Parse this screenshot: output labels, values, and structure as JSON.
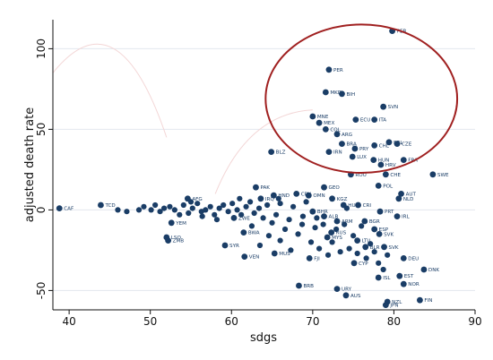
{
  "chart_data": {
    "type": "scatter",
    "title": "",
    "xlabel": "sdgs",
    "ylabel": "adjusted death rate",
    "xlim": [
      38,
      90
    ],
    "ylim": [
      -62,
      118
    ],
    "xticks": [
      40,
      50,
      60,
      70,
      80,
      90
    ],
    "yticks": [
      -50,
      0,
      50,
      100
    ],
    "grid": "horizontal",
    "marker_color": "#1a3d66",
    "grid_color": "#e3e7ee",
    "annotation": {
      "shape": "ellipse",
      "color": "#a02020",
      "center": [
        76,
        69
      ],
      "radii": [
        11.8,
        46
      ],
      "description": "outlier region"
    },
    "labeled_points": [
      {
        "label": "CAF",
        "x": 38.8,
        "y": 1
      },
      {
        "label": "TCD",
        "x": 43.9,
        "y": 3
      },
      {
        "label": "LSO",
        "x": 52.0,
        "y": -17
      },
      {
        "label": "ZMB",
        "x": 52.2,
        "y": -19
      },
      {
        "label": "YEM",
        "x": 52.6,
        "y": -8
      },
      {
        "label": "AFG",
        "x": 54.6,
        "y": 7
      },
      {
        "label": "SYR",
        "x": 59.2,
        "y": -22
      },
      {
        "label": "BWA",
        "x": 61.5,
        "y": -14
      },
      {
        "label": "VEN",
        "x": 61.6,
        "y": -29
      },
      {
        "label": "ZWE",
        "x": 60.3,
        "y": -5
      },
      {
        "label": "IRQ",
        "x": 63.6,
        "y": 7
      },
      {
        "label": "BLZ",
        "x": 64.9,
        "y": 36
      },
      {
        "label": "PAK",
        "x": 63.0,
        "y": 14
      },
      {
        "label": "HND",
        "x": 65.2,
        "y": 9
      },
      {
        "label": "CPV",
        "x": 68.0,
        "y": 10
      },
      {
        "label": "MUS",
        "x": 65.3,
        "y": -27
      },
      {
        "label": "BRB",
        "x": 68.3,
        "y": -47
      },
      {
        "label": "FJI",
        "x": 69.6,
        "y": -30
      },
      {
        "label": "GEO",
        "x": 71.4,
        "y": 14
      },
      {
        "label": "MNE",
        "x": 70.0,
        "y": 58
      },
      {
        "label": "MEX",
        "x": 70.8,
        "y": 54
      },
      {
        "label": "COL",
        "x": 71.6,
        "y": 50
      },
      {
        "label": "ARG",
        "x": 73.0,
        "y": 47
      },
      {
        "label": "BRA",
        "x": 73.6,
        "y": 41
      },
      {
        "label": "IRN",
        "x": 72.0,
        "y": 36
      },
      {
        "label": "PER",
        "x": 72.0,
        "y": 87
      },
      {
        "label": "MKD",
        "x": 71.6,
        "y": 73
      },
      {
        "label": "BIH",
        "x": 73.6,
        "y": 72
      },
      {
        "label": "ECU",
        "x": 75.3,
        "y": 56
      },
      {
        "label": "ITA",
        "x": 77.6,
        "y": 56
      },
      {
        "label": "SVN",
        "x": 78.7,
        "y": 64
      },
      {
        "label": "PRY",
        "x": 75.2,
        "y": 38
      },
      {
        "label": "LUX",
        "x": 74.9,
        "y": 33
      },
      {
        "label": "ROU",
        "x": 74.7,
        "y": 22
      },
      {
        "label": "CHL",
        "x": 77.6,
        "y": 40
      },
      {
        "label": "BEL",
        "x": 79.4,
        "y": 42
      },
      {
        "label": "CZE",
        "x": 80.4,
        "y": 41
      },
      {
        "label": "HUN",
        "x": 77.5,
        "y": 31
      },
      {
        "label": "HRV",
        "x": 78.4,
        "y": 28
      },
      {
        "label": "CHE",
        "x": 79.0,
        "y": 22
      },
      {
        "label": "FRA",
        "x": 81.2,
        "y": 31
      },
      {
        "label": "POL",
        "x": 78.1,
        "y": 15
      },
      {
        "label": "SWE",
        "x": 84.8,
        "y": 22
      },
      {
        "label": "AUT",
        "x": 80.9,
        "y": 10
      },
      {
        "label": "NLD",
        "x": 80.6,
        "y": 7
      },
      {
        "label": "CRI",
        "x": 75.6,
        "y": 3
      },
      {
        "label": "PRT",
        "x": 78.3,
        "y": -1
      },
      {
        "label": "IRL",
        "x": 80.4,
        "y": -4
      },
      {
        "label": "SVK",
        "x": 78.2,
        "y": -15
      },
      {
        "label": "BLR",
        "x": 76.5,
        "y": -23
      },
      {
        "label": "LTU",
        "x": 75.5,
        "y": -19
      },
      {
        "label": "CYP",
        "x": 75.1,
        "y": -33
      },
      {
        "label": "DEU",
        "x": 81.2,
        "y": -30
      },
      {
        "label": "EST",
        "x": 80.7,
        "y": -41
      },
      {
        "label": "NOR",
        "x": 81.2,
        "y": -46
      },
      {
        "label": "DNK",
        "x": 83.7,
        "y": -37
      },
      {
        "label": "FIN",
        "x": 83.2,
        "y": -56
      },
      {
        "label": "ISL",
        "x": 78.1,
        "y": -42
      },
      {
        "label": "URY",
        "x": 73.0,
        "y": -49
      },
      {
        "label": "AUS",
        "x": 74.1,
        "y": -53
      },
      {
        "label": "NZL",
        "x": 79.2,
        "y": -57
      },
      {
        "label": "JPN",
        "x": 79.0,
        "y": -59
      },
      {
        "label": "SVK",
        "x": 78.8,
        "y": -23
      },
      {
        "label": "MYS",
        "x": 71.8,
        "y": -17
      },
      {
        "label": "RUS",
        "x": 72.3,
        "y": -14
      },
      {
        "label": "ALB",
        "x": 71.4,
        "y": -4
      },
      {
        "label": "ARM",
        "x": 73.0,
        "y": -7
      },
      {
        "label": "BHR",
        "x": 70.0,
        "y": -1
      },
      {
        "label": "OMN",
        "x": 69.5,
        "y": 9
      },
      {
        "label": "KGZ",
        "x": 72.4,
        "y": 7
      },
      {
        "label": "HUB",
        "x": 73.8,
        "y": 3
      },
      {
        "label": "BGR",
        "x": 76.4,
        "y": -7
      },
      {
        "label": "ESP",
        "x": 77.6,
        "y": -12
      },
      {
        "label": "PER",
        "x": 79.8,
        "y": 111
      }
    ],
    "unlabeled_points": [
      {
        "x": 46.0,
        "y": 0
      },
      {
        "x": 47.1,
        "y": -1
      },
      {
        "x": 48.6,
        "y": 0
      },
      {
        "x": 49.2,
        "y": 2
      },
      {
        "x": 50.1,
        "y": 0
      },
      {
        "x": 50.6,
        "y": 3
      },
      {
        "x": 51.2,
        "y": -1
      },
      {
        "x": 51.7,
        "y": 1
      },
      {
        "x": 52.4,
        "y": 2
      },
      {
        "x": 53.0,
        "y": 0
      },
      {
        "x": 53.6,
        "y": -3
      },
      {
        "x": 54.1,
        "y": 3
      },
      {
        "x": 54.7,
        "y": -2
      },
      {
        "x": 55.2,
        "y": 1
      },
      {
        "x": 55.8,
        "y": 4
      },
      {
        "x": 56.3,
        "y": -1
      },
      {
        "x": 56.8,
        "y": 0
      },
      {
        "x": 57.4,
        "y": 2
      },
      {
        "x": 57.9,
        "y": -3
      },
      {
        "x": 58.5,
        "y": 1
      },
      {
        "x": 59.0,
        "y": 3
      },
      {
        "x": 59.6,
        "y": -1
      },
      {
        "x": 60.1,
        "y": 4
      },
      {
        "x": 60.7,
        "y": 0
      },
      {
        "x": 61.2,
        "y": -3
      },
      {
        "x": 61.8,
        "y": 2
      },
      {
        "x": 62.3,
        "y": 5
      },
      {
        "x": 62.8,
        "y": -2
      },
      {
        "x": 63.4,
        "y": 1
      },
      {
        "x": 63.9,
        "y": -5
      },
      {
        "x": 64.4,
        "y": 3
      },
      {
        "x": 65.0,
        "y": -8
      },
      {
        "x": 65.5,
        "y": -3
      },
      {
        "x": 66.0,
        "y": 4
      },
      {
        "x": 66.6,
        "y": -12
      },
      {
        "x": 67.1,
        "y": -6
      },
      {
        "x": 67.6,
        "y": 2
      },
      {
        "x": 68.2,
        "y": -15
      },
      {
        "x": 68.7,
        "y": -9
      },
      {
        "x": 69.2,
        "y": 5
      },
      {
        "x": 69.8,
        "y": -20
      },
      {
        "x": 70.3,
        "y": -11
      },
      {
        "x": 70.8,
        "y": -24
      },
      {
        "x": 71.3,
        "y": -9
      },
      {
        "x": 71.9,
        "y": -28
      },
      {
        "x": 72.4,
        "y": -20
      },
      {
        "x": 72.9,
        "y": -12
      },
      {
        "x": 73.4,
        "y": -26
      },
      {
        "x": 73.9,
        "y": -9
      },
      {
        "x": 74.5,
        "y": -24
      },
      {
        "x": 75.0,
        "y": -16
      },
      {
        "x": 75.5,
        "y": -27
      },
      {
        "x": 76.0,
        "y": -10
      },
      {
        "x": 76.6,
        "y": -30
      },
      {
        "x": 77.1,
        "y": -21
      },
      {
        "x": 77.6,
        "y": -26
      },
      {
        "x": 78.1,
        "y": -33
      },
      {
        "x": 78.7,
        "y": -37
      },
      {
        "x": 79.2,
        "y": -28
      },
      {
        "x": 63.5,
        "y": -22
      },
      {
        "x": 64.6,
        "y": -16
      },
      {
        "x": 66.0,
        "y": -19
      },
      {
        "x": 67.3,
        "y": -25
      },
      {
        "x": 58.2,
        "y": -6
      },
      {
        "x": 56.4,
        "y": -4
      },
      {
        "x": 55.0,
        "y": 5
      },
      {
        "x": 61.0,
        "y": 7
      },
      {
        "x": 62.5,
        "y": -10
      },
      {
        "x": 65.8,
        "y": 7
      },
      {
        "x": 68.8,
        "y": -4
      },
      {
        "x": 70.5,
        "y": -5
      },
      {
        "x": 74.2,
        "y": 1
      }
    ]
  }
}
